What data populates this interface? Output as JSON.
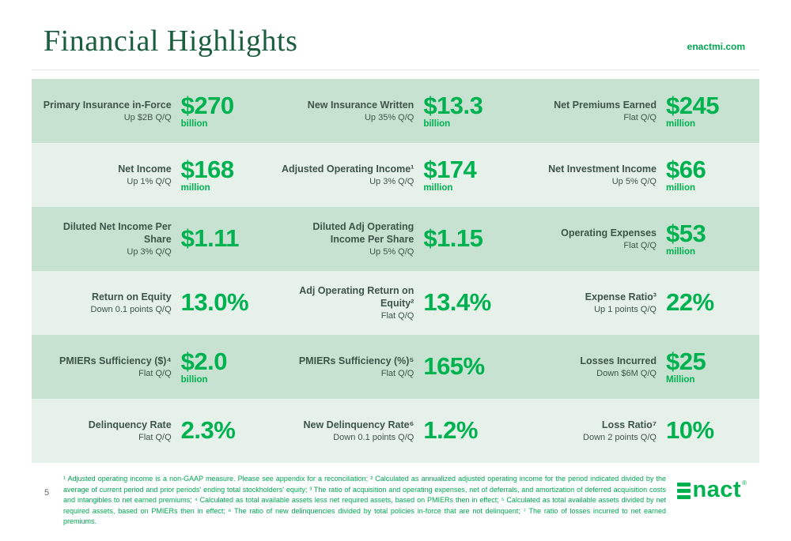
{
  "page": {
    "title": "Financial Highlights",
    "site": "enactmi.com",
    "page_number": "5"
  },
  "colors": {
    "brand_green": "#00b150",
    "title_dark_green": "#1b5e3f",
    "label_green_gray": "#3e5549",
    "row_shade_dark": "#c7e2d1",
    "row_shade_light": "#e5f1e9",
    "footnote_green": "#00a651"
  },
  "rows": [
    {
      "cells": [
        {
          "label": "Primary Insurance in-Force",
          "change": "Up $2B Q/Q",
          "value": "$270",
          "unit": "billion"
        },
        {
          "label": "New Insurance Written",
          "change": "Up 35% Q/Q",
          "value": "$13.3",
          "unit": "billion"
        },
        {
          "label": "Net Premiums Earned",
          "change": "Flat Q/Q",
          "value": "$245",
          "unit": "million"
        }
      ]
    },
    {
      "cells": [
        {
          "label": "Net Income",
          "change": "Up 1% Q/Q",
          "value": "$168",
          "unit": "million"
        },
        {
          "label": "Adjusted Operating Income¹",
          "change": "Up 3% Q/Q",
          "value": "$174",
          "unit": "million"
        },
        {
          "label": "Net Investment Income",
          "change": "Up 5% Q/Q",
          "value": "$66",
          "unit": "million"
        }
      ]
    },
    {
      "cells": [
        {
          "label": "Diluted Net Income Per Share",
          "change": "Up 3% Q/Q",
          "value": "$1.11",
          "unit": ""
        },
        {
          "label": "Diluted Adj Operating Income Per Share",
          "change": "Up 5% Q/Q",
          "value": "$1.15",
          "unit": ""
        },
        {
          "label": "Operating Expenses",
          "change": "Flat Q/Q",
          "value": "$53",
          "unit": "million"
        }
      ]
    },
    {
      "cells": [
        {
          "label": "Return on Equity",
          "change": "Down 0.1 points Q/Q",
          "value": "13.0%",
          "unit": ""
        },
        {
          "label": "Adj Operating Return on Equity²",
          "change": "Flat Q/Q",
          "value": "13.4%",
          "unit": ""
        },
        {
          "label": "Expense Ratio³",
          "change": "Up 1 points Q/Q",
          "value": "22%",
          "unit": ""
        }
      ]
    },
    {
      "cells": [
        {
          "label": "PMIERs Sufficiency ($)⁴",
          "change": "Flat Q/Q",
          "value": "$2.0",
          "unit": "billion"
        },
        {
          "label": "PMIERs Sufficiency (%)⁵",
          "change": "Flat Q/Q",
          "value": "165%",
          "unit": ""
        },
        {
          "label": "Losses Incurred",
          "change": "Down $6M Q/Q",
          "value": "$25",
          "unit": "Million"
        }
      ]
    },
    {
      "cells": [
        {
          "label": "Delinquency Rate",
          "change": "Flat Q/Q",
          "value": "2.3%",
          "unit": ""
        },
        {
          "label": "New Delinquency Rate⁶",
          "change": "Down 0.1 points Q/Q",
          "value": "1.2%",
          "unit": ""
        },
        {
          "label": "Loss Ratio⁷",
          "change": "Down 2 points Q/Q",
          "value": "10%",
          "unit": ""
        }
      ]
    }
  ],
  "footnotes": "¹ Adjusted operating income is a non-GAAP measure. Please see appendix for a reconciliation; ² Calculated as annualized adjusted operating income for the period indicated divided by the average of current period and prior periods' ending total stockholders' equity; ³ The ratio of acquisition and operating expenses, net of deferrals, and amortization of deferred acquisition costs and intangibles to net earned premiums; ⁴ Calculated as total available assets less net required assets, based on PMIERs then in effect; ⁵ Calculated as total available assets divided by net required assets, based on PMIERs then in effect;  ⁶ The ratio of new delinquencies divided by total policies in-force that are not delinquent; ⁷ The ratio of losses incurred to net earned premiums.",
  "logo": {
    "brand": "Enact",
    "wordmark_tail": "nact",
    "registered": "®"
  }
}
